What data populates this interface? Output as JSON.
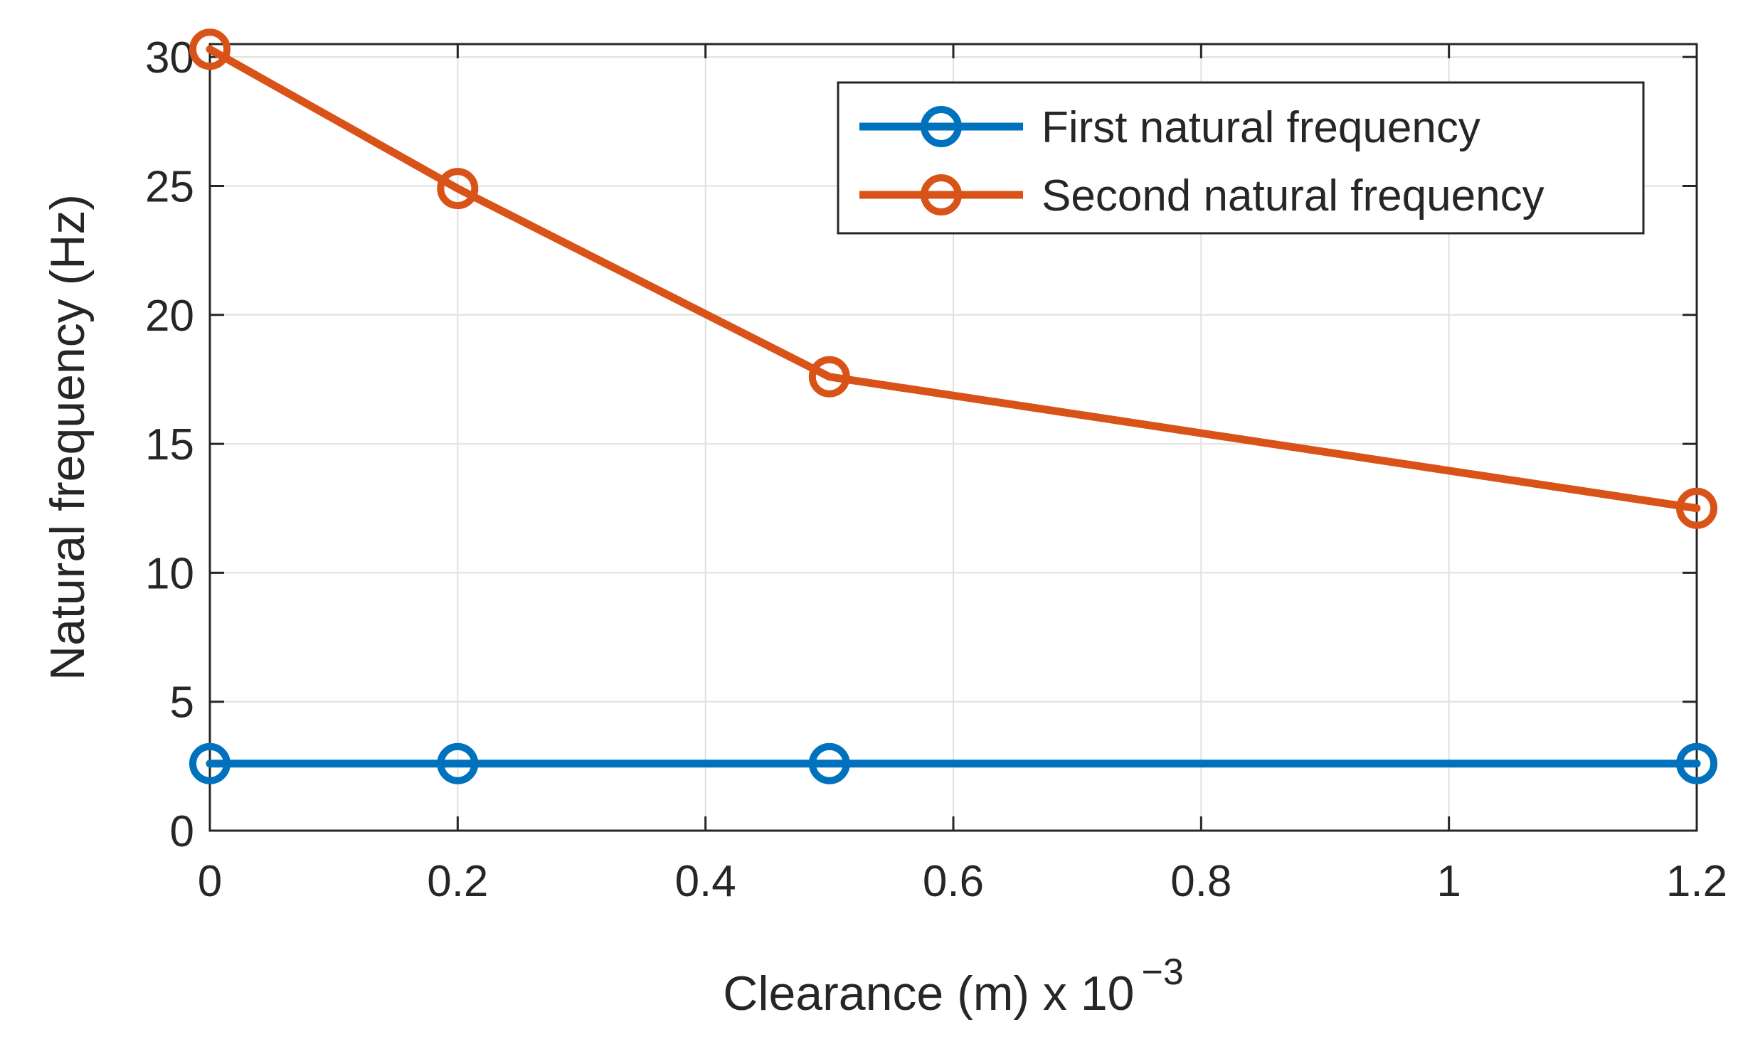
{
  "chart_data": {
    "type": "line",
    "xlabel": "Clearance (m) x 10",
    "xlabel_exponent": "−3",
    "ylabel": "Natural frequency (Hz)",
    "xlim": [
      0,
      1.2
    ],
    "ylim": [
      0,
      30.5
    ],
    "grid": true,
    "legend_position": "top-right",
    "x_ticks": [
      0,
      0.2,
      0.4,
      0.6,
      0.8,
      1,
      1.2
    ],
    "x_tick_labels": [
      "0",
      "0.2",
      "0.4",
      "0.6",
      "0.8",
      "1",
      "1.2"
    ],
    "y_ticks": [
      0,
      5,
      10,
      15,
      20,
      25,
      30
    ],
    "y_tick_labels": [
      "0",
      "5",
      "10",
      "15",
      "20",
      "25",
      "30"
    ],
    "series": [
      {
        "name": "First natural frequency",
        "color": "#0072BD",
        "marker": "circle",
        "x": [
          0,
          0.2,
          0.5,
          1.2
        ],
        "y": [
          2.6,
          2.6,
          2.6,
          2.6
        ]
      },
      {
        "name": "Second natural frequency",
        "color": "#D95319",
        "marker": "circle",
        "x": [
          0,
          0.2,
          0.5,
          1.2
        ],
        "y": [
          30.3,
          24.9,
          17.6,
          12.5
        ]
      }
    ]
  }
}
